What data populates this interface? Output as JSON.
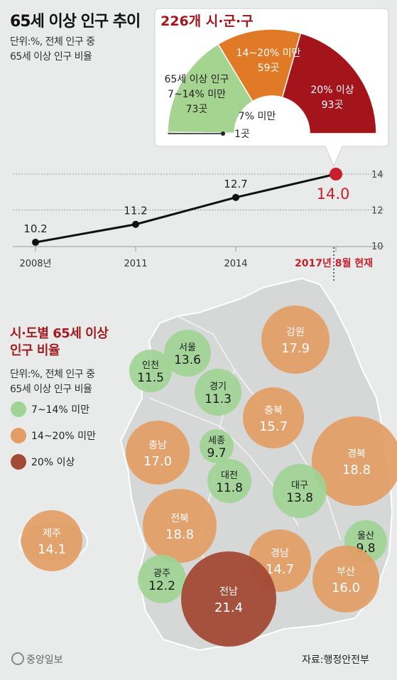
{
  "header": {
    "title": "65세 이상 인구 추이",
    "unit_line1": "단위:%, 전체 인구 중",
    "unit_line2": "65세 이상 인구 비율"
  },
  "map_section": {
    "title_line1": "시·도별 65세 이상",
    "title_line2": "인구 비율",
    "unit_line1": "단위:%, 전체 인구 중",
    "unit_line2": "65세 이상 인구 비율"
  },
  "legend": [
    {
      "label": "7~14% 미만",
      "color": "#9fd494"
    },
    {
      "label": "14~20% 미만",
      "color": "#e39c63"
    },
    {
      "label": "20% 이상",
      "color": "#a34a35"
    }
  ],
  "colors": {
    "green": "#9fd494",
    "orange": "#e39c63",
    "red": "#a34a35",
    "gauge_red": "#a3141b",
    "gauge_orange": "#e07a27",
    "gauge_green": "#a5d490",
    "line": "#111111",
    "highlight": "#c8202a"
  },
  "footer": {
    "logo": "중앙일보",
    "source": "자료:행정안전부"
  },
  "chart_data": [
    {
      "type": "line",
      "title": "65세 이상 인구 추이",
      "x": [
        "2008년",
        "2011",
        "2014",
        "2017년 8월 현재"
      ],
      "y": [
        10.2,
        11.2,
        12.7,
        14.0
      ],
      "y_ticks": [
        10,
        12,
        14
      ],
      "ylim": [
        10,
        14
      ],
      "highlight_last": true
    },
    {
      "type": "pie",
      "title": "226개 시·군·구",
      "style": "semicircle-gauge",
      "slices": [
        {
          "label": "7% 미만",
          "value": 1,
          "unit": "곳"
        },
        {
          "label": "65세 이상 인구 7~14% 미만",
          "value": 73,
          "unit": "곳"
        },
        {
          "label": "14~20% 미만",
          "value": 59,
          "unit": "곳"
        },
        {
          "label": "20% 이상",
          "value": 93,
          "unit": "곳"
        }
      ]
    },
    {
      "type": "bubble-map",
      "title": "시·도별 65세 이상 인구 비율",
      "regions": [
        {
          "name": "서울",
          "value": 13.6,
          "class": "green"
        },
        {
          "name": "인천",
          "value": 11.5,
          "class": "green"
        },
        {
          "name": "경기",
          "value": 11.3,
          "class": "green"
        },
        {
          "name": "강원",
          "value": 17.9,
          "class": "orange"
        },
        {
          "name": "충북",
          "value": 15.7,
          "class": "orange"
        },
        {
          "name": "충남",
          "value": 17.0,
          "class": "orange"
        },
        {
          "name": "세종",
          "value": 9.7,
          "class": "green"
        },
        {
          "name": "대전",
          "value": 11.8,
          "class": "green"
        },
        {
          "name": "경북",
          "value": 18.8,
          "class": "orange"
        },
        {
          "name": "대구",
          "value": 13.8,
          "class": "green"
        },
        {
          "name": "전북",
          "value": 18.8,
          "class": "orange"
        },
        {
          "name": "울산",
          "value": 9.8,
          "class": "green"
        },
        {
          "name": "경남",
          "value": 14.7,
          "class": "orange"
        },
        {
          "name": "부산",
          "value": 16.0,
          "class": "orange"
        },
        {
          "name": "광주",
          "value": 12.2,
          "class": "green"
        },
        {
          "name": "전남",
          "value": 21.4,
          "class": "red"
        },
        {
          "name": "제주",
          "value": 14.1,
          "class": "orange"
        }
      ]
    }
  ]
}
